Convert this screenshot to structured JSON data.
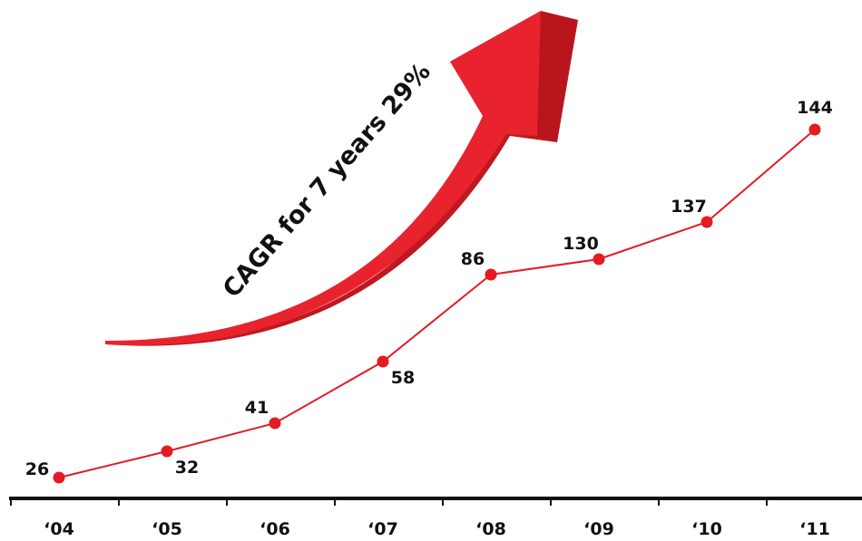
{
  "chart_data": {
    "type": "line",
    "categories": [
      "‘04",
      "‘05",
      "‘06",
      "‘07",
      "‘08",
      "‘09",
      "‘10",
      "‘11"
    ],
    "values": [
      26,
      32,
      41,
      58,
      86,
      130,
      137,
      144
    ],
    "title": "",
    "xlabel": "",
    "ylabel": "",
    "annotation": "CAGR for 7 years 29%",
    "grid": false,
    "colors": {
      "line": "#e31b23",
      "marker": "#e31b23",
      "arrow": "#e8232e",
      "arrow_shade": "#c0181f",
      "axis": "#111111",
      "text": "#111111"
    }
  }
}
